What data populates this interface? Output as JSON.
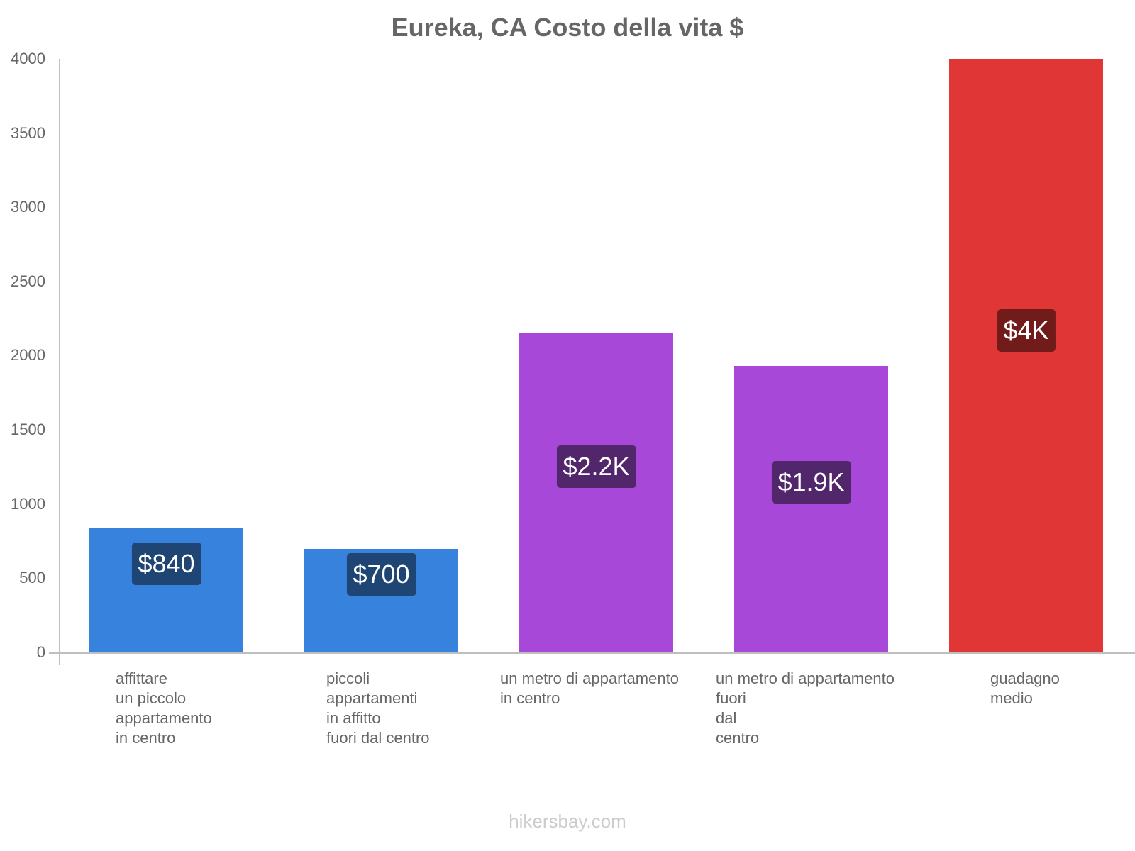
{
  "chart_data": {
    "type": "bar",
    "title": "Eureka, CA Costo della vita $",
    "xlabel": "",
    "ylabel": "",
    "ylim": [
      0,
      4000
    ],
    "yticks": [
      0,
      500,
      1000,
      1500,
      2000,
      2500,
      3000,
      3500,
      4000
    ],
    "grid": false,
    "legend": null,
    "categories": [
      "affittare un piccolo appartamento in centro",
      "piccoli appartamenti in affitto fuori dal centro",
      "un metro di appartamento in centro",
      "un metro di appartamento fuori dal centro",
      "guadagno medio"
    ],
    "values": [
      840,
      700,
      2150,
      1930,
      4000
    ],
    "value_labels": [
      "$840",
      "$700",
      "$2.2K",
      "$1.9K",
      "$4K"
    ],
    "colors": [
      "#3682dc",
      "#3682dc",
      "#a748d8",
      "#a748d8",
      "#e03636"
    ]
  },
  "title": "Eureka, CA Costo della vita $",
  "yticks": [
    "0",
    "500",
    "1000",
    "1500",
    "2000",
    "2500",
    "3000",
    "3500",
    "4000"
  ],
  "bars": [
    {
      "label_lines": [
        "affittare",
        "un piccolo",
        "appartamento",
        "in centro"
      ],
      "value": 840,
      "badge": "$840",
      "color": "#3682dc",
      "badge_color": "#1e4573"
    },
    {
      "label_lines": [
        "piccoli",
        "appartamenti",
        "in affitto",
        "fuori dal centro"
      ],
      "value": 700,
      "badge": "$700",
      "color": "#3682dc",
      "badge_color": "#1e4573"
    },
    {
      "label_lines": [
        "un metro di appartamento",
        "in centro"
      ],
      "value": 2150,
      "badge": "$2.2K",
      "color": "#a748d8",
      "badge_color": "#52266b"
    },
    {
      "label_lines": [
        "un metro di appartamento",
        "fuori",
        "dal",
        "centro"
      ],
      "value": 1930,
      "badge": "$1.9K",
      "color": "#a748d8",
      "badge_color": "#52266b"
    },
    {
      "label_lines": [
        "guadagno",
        "medio"
      ],
      "value": 4000,
      "badge": "$4K",
      "color": "#e03636",
      "badge_color": "#721b1b"
    }
  ],
  "footer": "hikersbay.com"
}
